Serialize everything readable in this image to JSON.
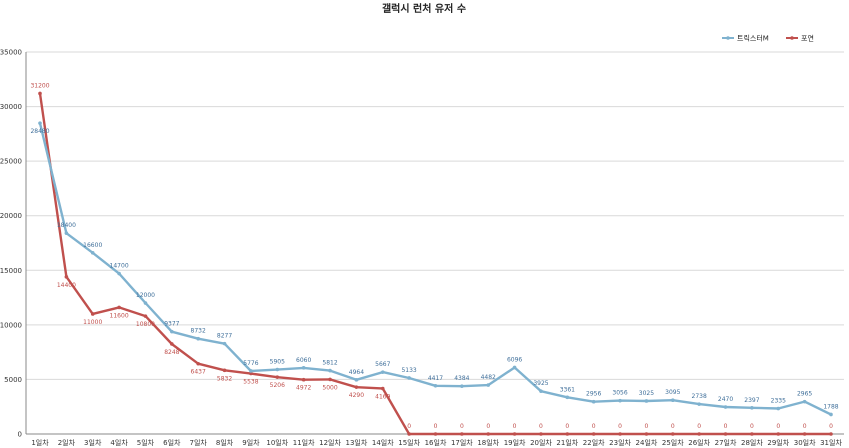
{
  "chart_data": {
    "type": "line",
    "title": "갤럭시 런처 유저 수",
    "xlabel": "",
    "ylabel": "",
    "ylim": [
      0,
      35000
    ],
    "yticks": [
      0,
      5000,
      10000,
      15000,
      20000,
      25000,
      30000,
      35000
    ],
    "grid": true,
    "legend_position": "top-right",
    "categories": [
      "1일차",
      "2일차",
      "3일차",
      "4일차",
      "5일차",
      "6일차",
      "7일차",
      "8일차",
      "9일차",
      "10일차",
      "11일차",
      "12일차",
      "13일차",
      "14일차",
      "15일차",
      "16일차",
      "17일차",
      "18일차",
      "19일차",
      "20일차",
      "21일차",
      "22일차",
      "23일차",
      "24일차",
      "25일차",
      "26일차",
      "27일차",
      "28일차",
      "29일차",
      "30일차",
      "31일차"
    ],
    "series": [
      {
        "name": "트릭스터M",
        "color": "#7fb2cf",
        "label_color": "#3f6f9a",
        "values": [
          28480,
          18400,
          16600,
          14700,
          12000,
          9377,
          8732,
          8277,
          5776,
          5905,
          6060,
          5812,
          4964,
          5667,
          5133,
          4417,
          4384,
          4482,
          6096,
          3925,
          3361,
          2956,
          3056,
          3025,
          3095,
          2738,
          2470,
          2397,
          2335,
          2965,
          1788
        ]
      },
      {
        "name": "포연",
        "color": "#c0504d",
        "label_color": "#c0504d",
        "values": [
          31200,
          14400,
          11000,
          11600,
          10800,
          8248,
          6437,
          5832,
          5538,
          5206,
          4972,
          5000,
          4290,
          4169,
          0,
          0,
          0,
          0,
          0,
          0,
          0,
          0,
          0,
          0,
          0,
          0,
          0,
          0,
          0,
          0,
          0
        ]
      }
    ]
  }
}
